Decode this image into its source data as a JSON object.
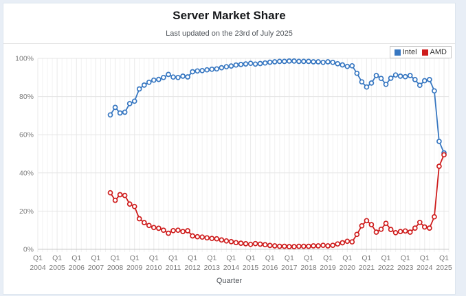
{
  "header": {
    "title": "Server Market Share",
    "subtitle": "Last updated on the 23rd of July 2025"
  },
  "chart_data": {
    "type": "line",
    "title": "Server Market Share",
    "xlabel": "Quarter",
    "ylabel": "",
    "ylim": [
      0,
      100
    ],
    "grid": true,
    "legend_position": "top-right",
    "y_tick_values": [
      0,
      20,
      40,
      60,
      80,
      100
    ],
    "y_ticks": [
      "0%",
      "20%",
      "40%",
      "60%",
      "80%",
      "100%"
    ],
    "x_tick_prefix": "Q1",
    "x_tick_years": [
      "2004",
      "2005",
      "2006",
      "2007",
      "2008",
      "2009",
      "2010",
      "2011",
      "2012",
      "2013",
      "2014",
      "2015",
      "2016",
      "2017",
      "2018",
      "2019",
      "2020",
      "2021",
      "2022",
      "2023",
      "2024",
      "2025"
    ],
    "axis_start": "2004 Q1",
    "x_start_index": 15,
    "categories": [
      "2007 Q4",
      "2008 Q1",
      "2008 Q2",
      "2008 Q3",
      "2008 Q4",
      "2009 Q1",
      "2009 Q2",
      "2009 Q3",
      "2009 Q4",
      "2010 Q1",
      "2010 Q2",
      "2010 Q3",
      "2010 Q4",
      "2011 Q1",
      "2011 Q2",
      "2011 Q3",
      "2011 Q4",
      "2012 Q1",
      "2012 Q2",
      "2012 Q3",
      "2012 Q4",
      "2013 Q1",
      "2013 Q2",
      "2013 Q3",
      "2013 Q4",
      "2014 Q1",
      "2014 Q2",
      "2014 Q3",
      "2014 Q4",
      "2015 Q1",
      "2015 Q2",
      "2015 Q3",
      "2015 Q4",
      "2016 Q1",
      "2016 Q2",
      "2016 Q3",
      "2016 Q4",
      "2017 Q1",
      "2017 Q2",
      "2017 Q3",
      "2017 Q4",
      "2018 Q1",
      "2018 Q2",
      "2018 Q3",
      "2018 Q4",
      "2019 Q1",
      "2019 Q2",
      "2019 Q3",
      "2019 Q4",
      "2020 Q1",
      "2020 Q2",
      "2020 Q3",
      "2020 Q4",
      "2021 Q1",
      "2021 Q2",
      "2021 Q3",
      "2021 Q4",
      "2022 Q1",
      "2022 Q2",
      "2022 Q3",
      "2022 Q4",
      "2023 Q1",
      "2023 Q2",
      "2023 Q3",
      "2023 Q4",
      "2024 Q1",
      "2024 Q2",
      "2024 Q3",
      "2024 Q4",
      "2025 Q1"
    ],
    "series": [
      {
        "name": "Intel",
        "color": "#3777c1",
        "values": [
          70.4,
          74.3,
          71.4,
          71.8,
          76.3,
          77.6,
          84.0,
          86.0,
          87.5,
          88.6,
          89.0,
          90.0,
          91.6,
          90.2,
          90.0,
          90.7,
          90.3,
          93.0,
          93.4,
          93.6,
          94.0,
          94.3,
          94.5,
          95.1,
          95.6,
          96.0,
          96.5,
          96.8,
          97.1,
          97.4,
          97.0,
          97.3,
          97.6,
          98.0,
          98.2,
          98.4,
          98.4,
          98.6,
          98.6,
          98.4,
          98.4,
          98.4,
          98.2,
          98.2,
          97.9,
          98.2,
          97.9,
          97.2,
          96.6,
          95.8,
          96.1,
          92.2,
          87.7,
          85.0,
          87.1,
          91.0,
          89.5,
          86.4,
          89.6,
          91.3,
          90.7,
          90.4,
          91.0,
          88.9,
          85.9,
          88.3,
          88.9,
          83.0,
          56.5,
          50.5
        ]
      },
      {
        "name": "AMD",
        "color": "#ce1c1c",
        "values": [
          29.6,
          25.7,
          28.6,
          28.2,
          23.7,
          22.4,
          16.0,
          14.0,
          12.5,
          11.4,
          11.0,
          10.0,
          8.4,
          9.8,
          10.0,
          9.3,
          9.7,
          7.0,
          6.6,
          6.4,
          6.0,
          5.7,
          5.5,
          4.9,
          4.4,
          4.0,
          3.5,
          3.2,
          2.9,
          2.6,
          3.0,
          2.7,
          2.4,
          2.0,
          1.8,
          1.6,
          1.6,
          1.4,
          1.4,
          1.6,
          1.6,
          1.6,
          1.8,
          1.8,
          2.1,
          1.8,
          2.1,
          2.8,
          3.4,
          4.2,
          3.9,
          7.8,
          12.3,
          15.0,
          12.9,
          9.0,
          10.5,
          13.6,
          10.4,
          8.7,
          9.3,
          9.6,
          9.0,
          11.1,
          14.1,
          11.7,
          11.1,
          17.0,
          43.5,
          49.5
        ]
      }
    ]
  }
}
